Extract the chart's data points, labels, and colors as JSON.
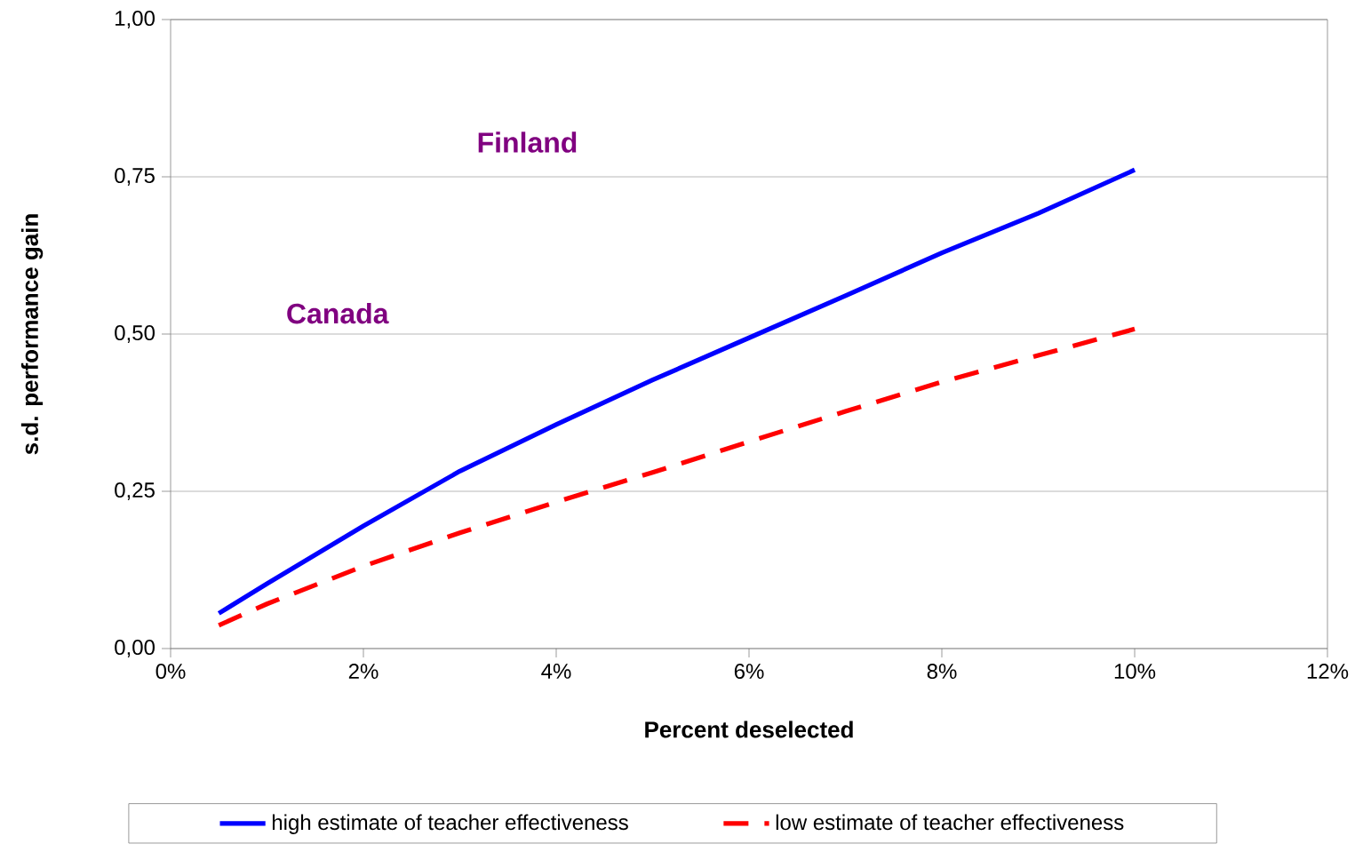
{
  "chart_data": {
    "type": "line",
    "xlabel": "Percent deselected",
    "ylabel": "s.d. performance gain",
    "x": [
      0.5,
      1,
      2,
      3,
      4,
      5,
      6,
      7,
      8,
      9,
      10
    ],
    "series": [
      {
        "name": "high estimate of teacher effectiveness",
        "color": "#0000ff",
        "line_style": "solid",
        "values": [
          0.056,
          0.103,
          0.195,
          0.282,
          0.356,
          0.427,
          0.494,
          0.561,
          0.629,
          0.692,
          0.761
        ]
      },
      {
        "name": "low estimate of teacher effectiveness",
        "color": "#ff0000",
        "line_style": "dashed",
        "values": [
          0.037,
          0.071,
          0.131,
          0.184,
          0.233,
          0.28,
          0.329,
          0.377,
          0.424,
          0.466,
          0.508
        ]
      }
    ],
    "xlim": [
      0,
      12
    ],
    "xticks": [
      {
        "value": 0,
        "label": "0%"
      },
      {
        "value": 2,
        "label": "2%"
      },
      {
        "value": 4,
        "label": "4%"
      },
      {
        "value": 6,
        "label": "6%"
      },
      {
        "value": 8,
        "label": "8%"
      },
      {
        "value": 10,
        "label": "10%"
      },
      {
        "value": 12,
        "label": "12%"
      }
    ],
    "ylim": [
      0,
      1
    ],
    "yticks": [
      {
        "value": 0,
        "label": "0,00"
      },
      {
        "value": 0.25,
        "label": "0,25"
      },
      {
        "value": 0.5,
        "label": "0,50"
      },
      {
        "value": 0.75,
        "label": "0,75"
      },
      {
        "value": 1,
        "label": "1,00"
      }
    ],
    "annotations": [
      "Finland",
      "Canada"
    ],
    "grid": "y",
    "legend": "bottom",
    "marker": "none"
  }
}
